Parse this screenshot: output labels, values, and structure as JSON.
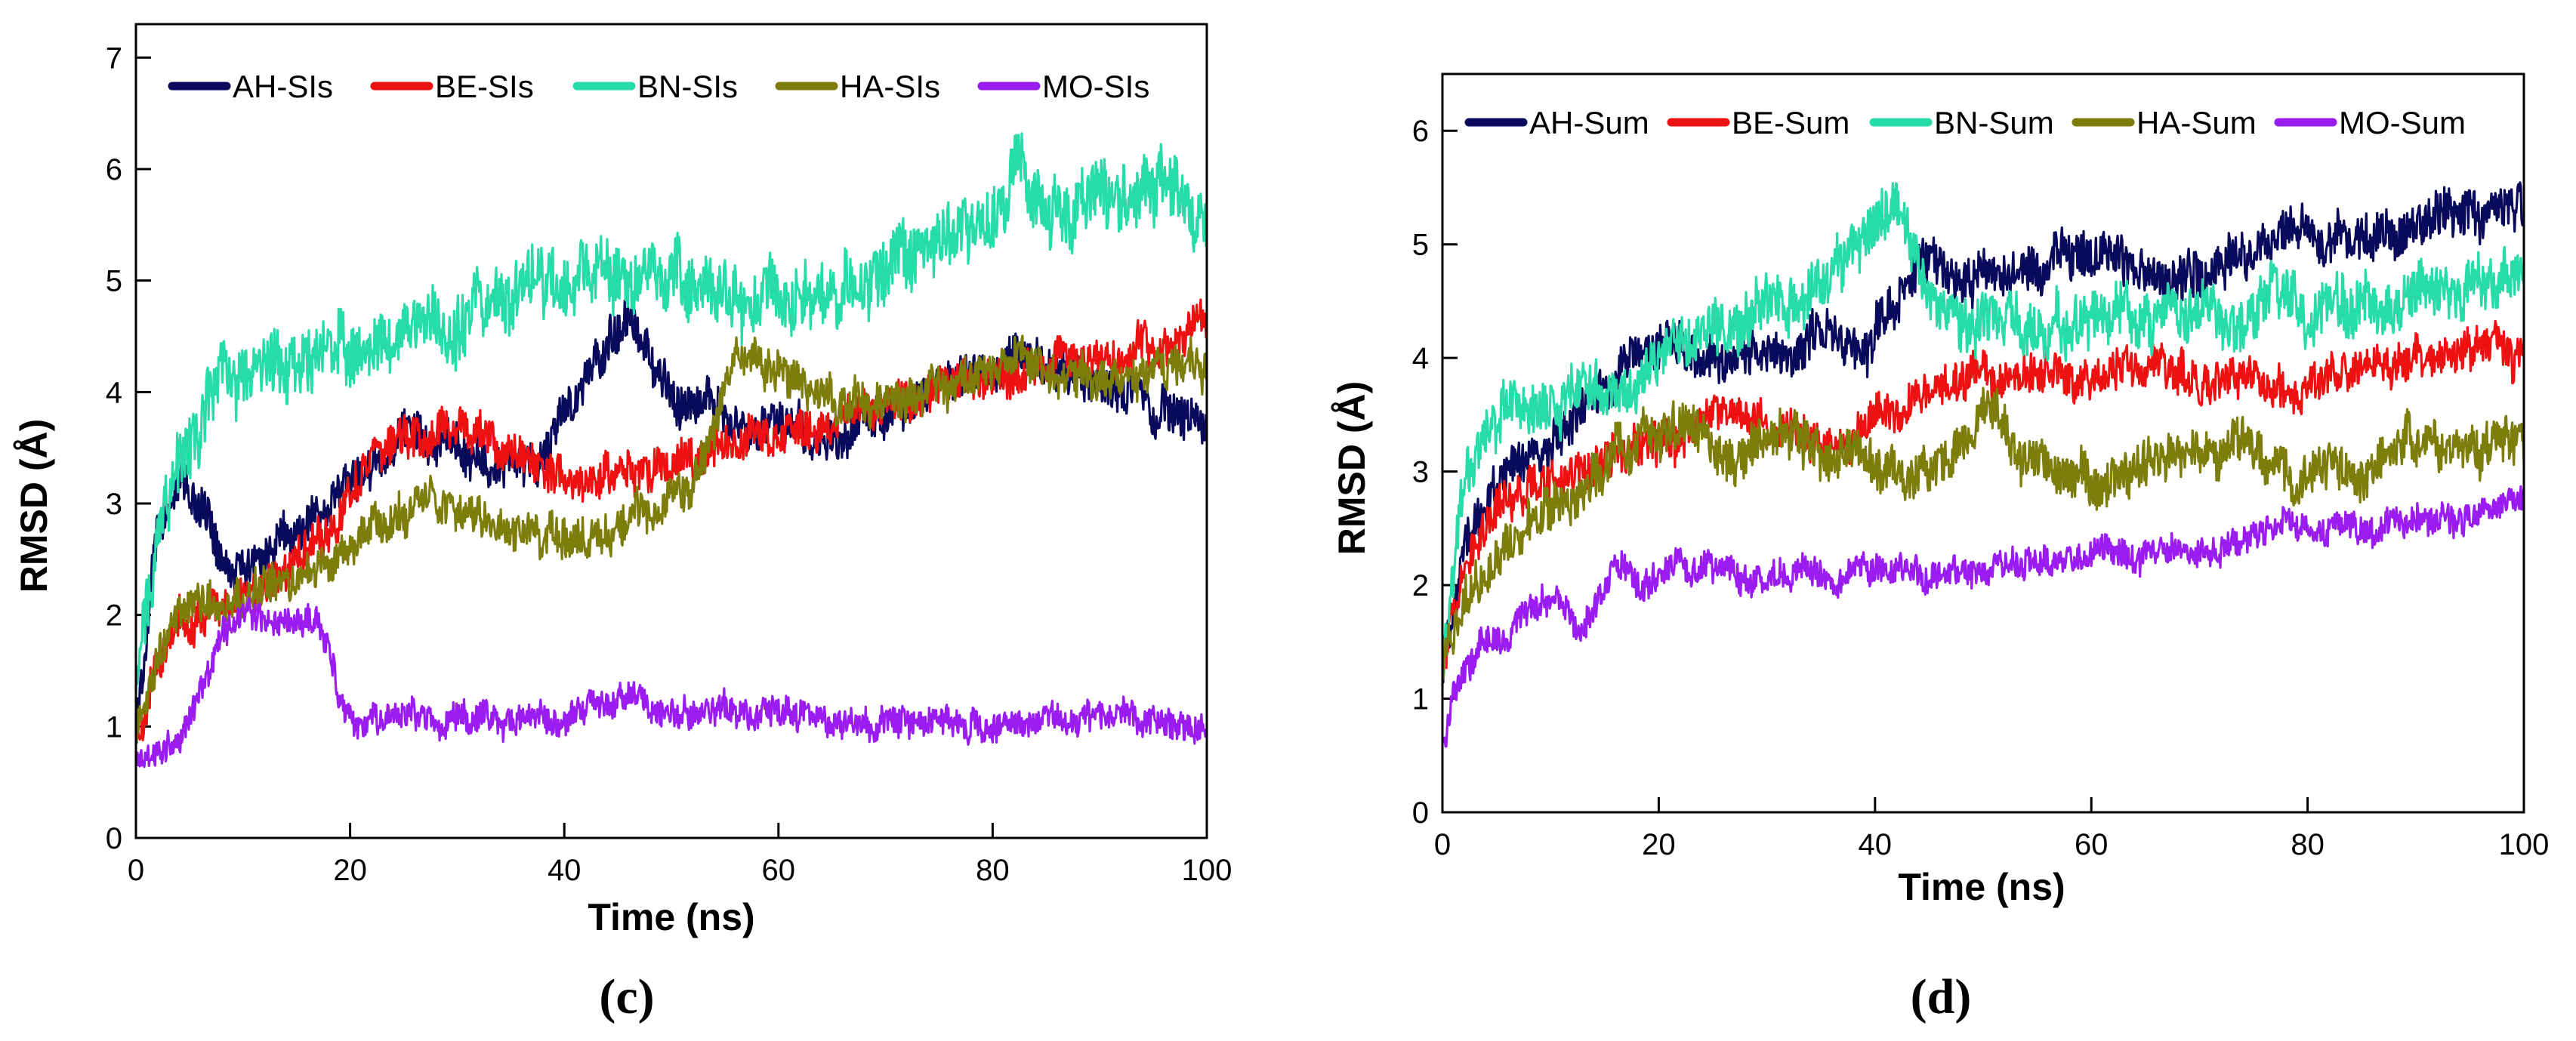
{
  "chart_data": [
    {
      "type": "line",
      "panel_label": "(c)",
      "xlabel": "Time (ns)",
      "ylabel": "RMSD (Å)",
      "xlim": [
        0,
        100
      ],
      "ylim": [
        0,
        7.3
      ],
      "xticks": [
        0,
        20,
        40,
        60,
        80,
        100
      ],
      "yticks": [
        0,
        1,
        2,
        3,
        4,
        5,
        6,
        7
      ],
      "legend_position": "top",
      "series": [
        {
          "name": "AH-SIs",
          "color": "#0a0a5c",
          "noise": 0.16,
          "x": [
            0,
            2,
            4,
            6,
            8,
            10,
            14,
            18,
            22,
            26,
            30,
            34,
            38,
            42,
            44,
            46,
            48,
            50,
            54,
            58,
            62,
            66,
            70,
            74,
            78,
            82,
            86,
            90,
            94,
            98,
            100
          ],
          "y": [
            0.9,
            2.8,
            3.2,
            3.0,
            2.6,
            2.4,
            2.7,
            3.0,
            3.4,
            3.6,
            3.5,
            3.3,
            3.4,
            4.1,
            4.4,
            4.6,
            4.3,
            4.0,
            3.9,
            3.7,
            3.6,
            3.6,
            3.8,
            3.9,
            4.1,
            4.3,
            4.2,
            4.1,
            3.9,
            3.8,
            3.7
          ]
        },
        {
          "name": "BE-SIs",
          "color": "#ee1111",
          "noise": 0.15,
          "x": [
            0,
            2,
            4,
            6,
            8,
            10,
            14,
            18,
            22,
            26,
            30,
            34,
            38,
            42,
            46,
            50,
            54,
            58,
            62,
            66,
            70,
            74,
            78,
            82,
            86,
            90,
            94,
            98,
            100
          ],
          "y": [
            0.9,
            1.6,
            1.9,
            2.0,
            2.1,
            2.2,
            2.4,
            2.8,
            3.4,
            3.6,
            3.7,
            3.5,
            3.3,
            3.2,
            3.3,
            3.3,
            3.5,
            3.6,
            3.6,
            3.7,
            3.9,
            4.0,
            4.1,
            4.2,
            4.3,
            4.3,
            4.4,
            4.6,
            4.7
          ]
        },
        {
          "name": "BN-SIs",
          "color": "#28dcaa",
          "noise": 0.25,
          "x": [
            0,
            2,
            4,
            6,
            8,
            10,
            14,
            18,
            22,
            26,
            30,
            34,
            38,
            42,
            46,
            50,
            54,
            58,
            62,
            66,
            70,
            74,
            78,
            82,
            86,
            90,
            94,
            98,
            100
          ],
          "y": [
            1.3,
            2.8,
            3.4,
            3.6,
            4.2,
            4.0,
            4.2,
            4.5,
            4.4,
            4.6,
            4.6,
            4.9,
            5.0,
            5.1,
            5.0,
            5.1,
            4.9,
            4.8,
            4.9,
            4.9,
            5.1,
            5.3,
            5.5,
            5.8,
            5.6,
            5.8,
            5.8,
            5.7,
            5.6
          ]
        },
        {
          "name": "HA-SIs",
          "color": "#7d7d0c",
          "noise": 0.15,
          "x": [
            0,
            2,
            4,
            6,
            8,
            10,
            14,
            18,
            22,
            26,
            30,
            34,
            38,
            42,
            46,
            50,
            54,
            56,
            58,
            62,
            66,
            70,
            74,
            78,
            82,
            86,
            90,
            94,
            98,
            100
          ],
          "y": [
            0.9,
            1.6,
            2.0,
            2.2,
            2.1,
            2.2,
            2.3,
            2.4,
            2.8,
            3.0,
            2.9,
            2.8,
            2.7,
            2.7,
            2.8,
            3.0,
            3.6,
            4.4,
            4.3,
            4.1,
            3.9,
            3.9,
            4.0,
            4.1,
            4.2,
            4.2,
            4.1,
            4.1,
            4.2,
            4.3
          ]
        },
        {
          "name": "MO-SIs",
          "color": "#9a1cf0",
          "noise": 0.11,
          "x": [
            0,
            2,
            4,
            6,
            8,
            10,
            12,
            14,
            16,
            18,
            19,
            21,
            26,
            30,
            36,
            40,
            46,
            50,
            56,
            60,
            66,
            70,
            76,
            80,
            86,
            90,
            96,
            100
          ],
          "y": [
            0.75,
            0.8,
            0.85,
            1.3,
            1.8,
            1.95,
            2.0,
            1.9,
            1.95,
            1.7,
            1.2,
            1.05,
            1.1,
            1.05,
            1.1,
            1.1,
            1.2,
            1.1,
            1.15,
            1.2,
            1.0,
            1.05,
            1.1,
            1.05,
            1.1,
            1.1,
            1.05,
            1.0
          ]
        }
      ]
    },
    {
      "type": "line",
      "panel_label": "(d)",
      "xlabel": "Time (ns)",
      "ylabel": "RMSD (Å)",
      "xlim": [
        0,
        100
      ],
      "ylim": [
        0,
        6.5
      ],
      "xticks": [
        0,
        20,
        40,
        60,
        80,
        100
      ],
      "yticks": [
        0,
        1,
        2,
        3,
        4,
        5,
        6
      ],
      "legend_position": "top",
      "series": [
        {
          "name": "AH-Sum",
          "color": "#0a0a5c",
          "noise": 0.17,
          "x": [
            0,
            2,
            4,
            6,
            8,
            10,
            14,
            18,
            22,
            26,
            30,
            34,
            38,
            42,
            44,
            48,
            52,
            56,
            60,
            64,
            68,
            72,
            76,
            80,
            84,
            88,
            92,
            96,
            100
          ],
          "y": [
            1.3,
            2.4,
            2.8,
            3.0,
            3.1,
            3.2,
            3.6,
            4.0,
            4.1,
            4.0,
            4.0,
            4.1,
            4.1,
            4.4,
            4.9,
            4.7,
            4.7,
            4.8,
            4.9,
            4.9,
            4.6,
            4.7,
            5.0,
            5.1,
            5.0,
            5.1,
            5.3,
            5.3,
            5.3
          ]
        },
        {
          "name": "BE-Sum",
          "color": "#ee1111",
          "noise": 0.15,
          "x": [
            0,
            2,
            4,
            6,
            8,
            10,
            14,
            18,
            22,
            26,
            30,
            34,
            38,
            42,
            46,
            50,
            54,
            58,
            62,
            66,
            70,
            74,
            78,
            82,
            86,
            90,
            94,
            98,
            100
          ],
          "y": [
            1.2,
            2.3,
            2.6,
            2.8,
            2.9,
            2.9,
            3.0,
            3.2,
            3.3,
            3.5,
            3.4,
            3.3,
            3.4,
            3.5,
            3.7,
            3.8,
            3.9,
            3.8,
            3.9,
            3.9,
            3.8,
            3.9,
            3.7,
            3.8,
            3.9,
            4.0,
            4.0,
            4.1,
            4.0
          ]
        },
        {
          "name": "BN-Sum",
          "color": "#28dcaa",
          "noise": 0.2,
          "x": [
            0,
            2,
            4,
            6,
            8,
            10,
            14,
            18,
            22,
            26,
            30,
            34,
            38,
            40,
            42,
            44,
            48,
            52,
            56,
            60,
            64,
            68,
            72,
            76,
            80,
            84,
            88,
            92,
            96,
            100
          ],
          "y": [
            1.4,
            2.9,
            3.3,
            3.5,
            3.5,
            3.6,
            3.7,
            3.8,
            4.0,
            4.3,
            4.5,
            4.6,
            4.9,
            5.2,
            5.4,
            4.7,
            4.3,
            4.3,
            4.3,
            4.4,
            4.4,
            4.4,
            4.4,
            4.5,
            4.4,
            4.5,
            4.5,
            4.6,
            4.6,
            4.6
          ]
        },
        {
          "name": "HA-Sum",
          "color": "#7d7d0c",
          "noise": 0.17,
          "x": [
            0,
            2,
            4,
            6,
            8,
            10,
            14,
            18,
            22,
            26,
            30,
            34,
            38,
            42,
            46,
            50,
            54,
            58,
            62,
            66,
            70,
            74,
            78,
            82,
            86,
            90,
            94,
            98,
            100
          ],
          "y": [
            1.3,
            1.9,
            2.1,
            2.3,
            2.4,
            2.6,
            3.0,
            3.3,
            3.4,
            3.1,
            3.3,
            3.2,
            3.1,
            3.0,
            3.1,
            3.4,
            3.1,
            2.9,
            2.9,
            3.1,
            3.2,
            3.3,
            3.0,
            3.0,
            3.1,
            3.2,
            3.2,
            3.2,
            3.3
          ]
        },
        {
          "name": "MO-Sum",
          "color": "#9a1cf0",
          "noise": 0.11,
          "x": [
            0,
            1,
            2,
            4,
            6,
            8,
            10,
            13,
            16,
            18,
            22,
            26,
            30,
            34,
            38,
            42,
            46,
            50,
            54,
            58,
            62,
            66,
            70,
            74,
            78,
            82,
            86,
            90,
            94,
            98,
            100
          ],
          "y": [
            0.6,
            1.0,
            1.3,
            1.6,
            1.5,
            1.8,
            1.9,
            1.6,
            2.2,
            2.0,
            2.1,
            2.1,
            2.1,
            2.1,
            2.1,
            2.2,
            2.1,
            2.2,
            2.2,
            2.2,
            2.3,
            2.3,
            2.3,
            2.4,
            2.5,
            2.5,
            2.5,
            2.6,
            2.6,
            2.7,
            2.7
          ]
        }
      ]
    }
  ]
}
